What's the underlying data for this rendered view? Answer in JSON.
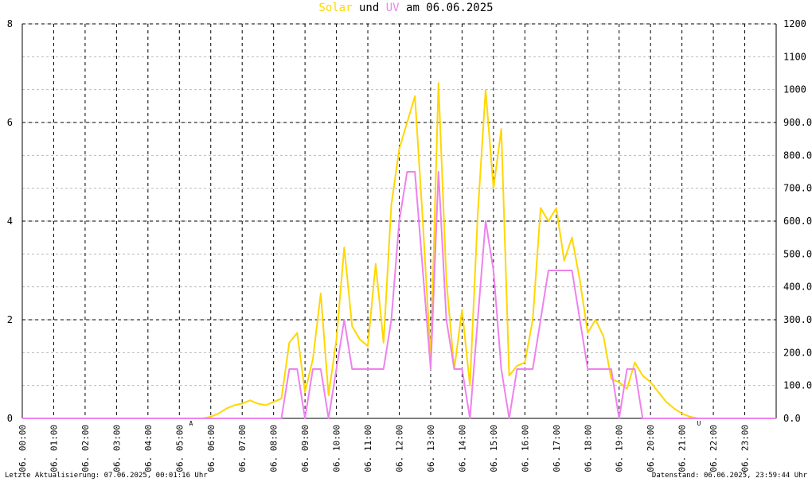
{
  "chart_data": {
    "type": "line",
    "title_connector": "und",
    "title_suffix": "am 06.06.2025",
    "xlim": [
      0,
      24
    ],
    "xticks": [
      {
        "value": 0,
        "label": "06. 00:00"
      },
      {
        "value": 1,
        "label": "06. 01:00"
      },
      {
        "value": 2,
        "label": "06. 02:00"
      },
      {
        "value": 3,
        "label": "06. 03:00"
      },
      {
        "value": 4,
        "label": "06. 04:00"
      },
      {
        "value": 5,
        "label": "06. 05:00"
      },
      {
        "value": 6,
        "label": "06. 06:00"
      },
      {
        "value": 7,
        "label": "06. 07:00"
      },
      {
        "value": 8,
        "label": "06. 08:00"
      },
      {
        "value": 9,
        "label": "06. 09:00"
      },
      {
        "value": 10,
        "label": "06. 10:00"
      },
      {
        "value": 11,
        "label": "06. 11:00"
      },
      {
        "value": 12,
        "label": "06. 12:00"
      },
      {
        "value": 13,
        "label": "06. 13:00"
      },
      {
        "value": 14,
        "label": "06. 14:00"
      },
      {
        "value": 15,
        "label": "06. 15:00"
      },
      {
        "value": 16,
        "label": "06. 16:00"
      },
      {
        "value": 17,
        "label": "06. 17:00"
      },
      {
        "value": 18,
        "label": "06. 18:00"
      },
      {
        "value": 19,
        "label": "06. 19:00"
      },
      {
        "value": 20,
        "label": "06. 20:00"
      },
      {
        "value": 21,
        "label": "06. 21:00"
      },
      {
        "value": 22,
        "label": "06. 22:00"
      },
      {
        "value": 23,
        "label": "06. 23:00"
      }
    ],
    "ylim": [
      0,
      8
    ],
    "yticks": [
      0,
      2,
      4,
      6,
      8
    ],
    "y2lim": [
      0,
      1200
    ],
    "y2ticks": [
      {
        "value": 0,
        "label": "0.0"
      },
      {
        "value": 100,
        "label": "100.0"
      },
      {
        "value": 200,
        "label": "200.0"
      },
      {
        "value": 300,
        "label": "300.0"
      },
      {
        "value": 400,
        "label": "400.0"
      },
      {
        "value": 500,
        "label": "500.0"
      },
      {
        "value": 600,
        "label": "600.0"
      },
      {
        "value": 700,
        "label": "700.0"
      },
      {
        "value": 800,
        "label": "800.0"
      },
      {
        "value": 900,
        "label": "900.0"
      },
      1000,
      1100,
      1200
    ],
    "grid": true,
    "x": [
      0,
      5.5,
      5.75,
      6,
      6.25,
      6.5,
      6.75,
      7,
      7.25,
      7.5,
      7.75,
      8,
      8.25,
      8.5,
      8.75,
      9,
      9.25,
      9.5,
      9.75,
      10,
      10.25,
      10.5,
      10.75,
      11,
      11.25,
      11.5,
      11.75,
      12,
      12.25,
      12.5,
      12.75,
      13,
      13.25,
      13.5,
      13.75,
      14,
      14.25,
      14.5,
      14.75,
      15,
      15.25,
      15.5,
      15.75,
      16,
      16.25,
      16.5,
      16.75,
      17,
      17.25,
      17.5,
      17.75,
      18,
      18.25,
      18.5,
      18.75,
      19,
      19.25,
      19.5,
      19.75,
      20,
      20.25,
      20.5,
      20.75,
      21,
      21.25,
      21.5,
      24
    ],
    "series": [
      {
        "name": "Solar",
        "color": "#ffd700",
        "axis": "y2",
        "values": [
          0,
          0,
          0,
          5,
          15,
          30,
          40,
          45,
          55,
          45,
          40,
          50,
          60,
          230,
          260,
          80,
          180,
          380,
          70,
          240,
          520,
          280,
          240,
          220,
          470,
          230,
          650,
          820,
          900,
          980,
          600,
          180,
          1020,
          420,
          150,
          330,
          100,
          620,
          1000,
          700,
          880,
          130,
          160,
          170,
          300,
          640,
          600,
          640,
          480,
          550,
          420,
          260,
          300,
          250,
          120,
          110,
          90,
          170,
          130,
          110,
          80,
          50,
          30,
          15,
          5,
          0,
          0
        ]
      },
      {
        "name": "UV",
        "color": "#ee82ee",
        "values": [
          0,
          0,
          0,
          0,
          0,
          0,
          0,
          0,
          0,
          0,
          0,
          0,
          0,
          1,
          1,
          0,
          1,
          1,
          0,
          1,
          2,
          1,
          1,
          1,
          1,
          1,
          2,
          4,
          5,
          5,
          3,
          1,
          5,
          2,
          1,
          1,
          0,
          2,
          4,
          3,
          1,
          0,
          1,
          1,
          1,
          2,
          3,
          3,
          3,
          3,
          2,
          1,
          1,
          1,
          1,
          0,
          1,
          1,
          0,
          0,
          0,
          0,
          0,
          0,
          0,
          0,
          0
        ]
      }
    ],
    "annotations": [
      {
        "text": "A",
        "x": 5.37,
        "color": "#cc0000"
      },
      {
        "text": "U",
        "x": 21.54,
        "color": "#cc0000"
      }
    ],
    "footer_left": "Letzte Aktualisierung: 07.06.2025, 00:01:16 Uhr",
    "footer_right": "Datenstand: 06.06.2025, 23:59:44 Uhr"
  }
}
